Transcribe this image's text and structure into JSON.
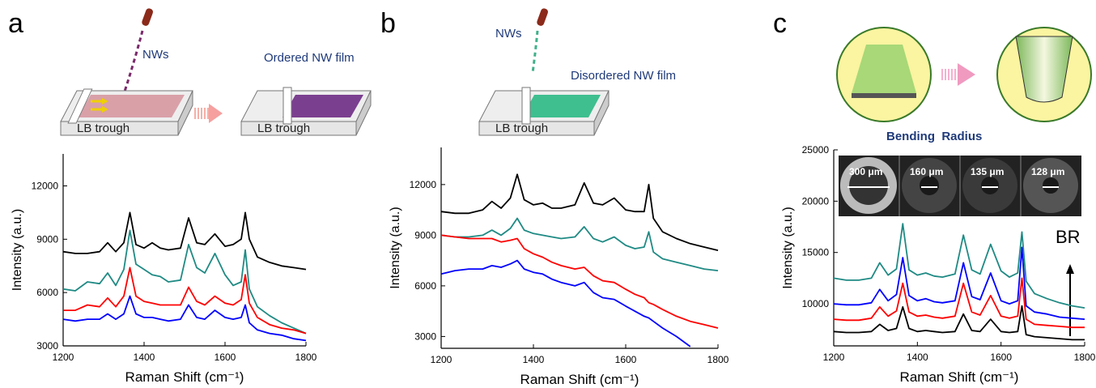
{
  "chart_data": [
    {
      "type": "line",
      "panel_label": "a",
      "xlabel": "Raman Shift (cm⁻¹)",
      "ylabel": "Intensity (a.u.)",
      "annotations": [
        "NWs",
        "Ordered NW film",
        "LB trough",
        "LB trough"
      ],
      "xlim": [
        1200,
        1800
      ],
      "xticks": [
        1200,
        1400,
        1600,
        1800
      ],
      "ylim": [
        3000,
        13800
      ],
      "yticks": [
        3000,
        6000,
        9000,
        12000
      ],
      "x": [
        1200,
        1230,
        1260,
        1290,
        1310,
        1330,
        1350,
        1365,
        1380,
        1400,
        1420,
        1440,
        1460,
        1490,
        1510,
        1530,
        1550,
        1575,
        1600,
        1620,
        1640,
        1650,
        1660,
        1680,
        1710,
        1740,
        1770,
        1800
      ],
      "series": [
        {
          "color": "#000000",
          "values": [
            8300,
            8200,
            8200,
            8300,
            8800,
            8300,
            8800,
            10500,
            8700,
            8500,
            8800,
            8500,
            8400,
            8500,
            10200,
            8800,
            8700,
            9300,
            8600,
            8700,
            9000,
            10500,
            9000,
            8000,
            7700,
            7500,
            7400,
            7300
          ]
        },
        {
          "color": "#1f8a84",
          "values": [
            6200,
            6100,
            6600,
            6500,
            7100,
            6400,
            7300,
            9500,
            7600,
            7300,
            7000,
            6900,
            6600,
            6700,
            8700,
            7400,
            7100,
            8200,
            7000,
            6400,
            6600,
            8400,
            6200,
            5200,
            4700,
            4300,
            4000,
            3700
          ]
        },
        {
          "color": "#ff0000",
          "values": [
            5000,
            5000,
            5300,
            5200,
            5700,
            5200,
            5800,
            7400,
            5800,
            5500,
            5400,
            5300,
            5300,
            5300,
            6300,
            5500,
            5300,
            5800,
            5400,
            5300,
            5600,
            7000,
            5400,
            4600,
            4200,
            4000,
            3900,
            3700
          ]
        },
        {
          "color": "#0000ff",
          "values": [
            4500,
            4400,
            4500,
            4500,
            4800,
            4500,
            4800,
            5800,
            4800,
            4600,
            4600,
            4500,
            4400,
            4500,
            5300,
            4600,
            4500,
            5000,
            4600,
            4500,
            4600,
            5300,
            4300,
            3900,
            3700,
            3600,
            3400,
            3300
          ]
        }
      ]
    },
    {
      "type": "line",
      "panel_label": "b",
      "xlabel": "Raman Shift (cm⁻¹)",
      "ylabel": "Intensity (a.u.)",
      "annotations": [
        "NWs",
        "Disordered NW film",
        "LB trough"
      ],
      "xlim": [
        1200,
        1800
      ],
      "xticks": [
        1200,
        1400,
        1600,
        1800
      ],
      "ylim": [
        2300,
        14200
      ],
      "yticks": [
        3000,
        6000,
        9000,
        12000
      ],
      "x": [
        1200,
        1230,
        1260,
        1290,
        1310,
        1330,
        1350,
        1365,
        1380,
        1400,
        1420,
        1440,
        1460,
        1490,
        1510,
        1530,
        1550,
        1575,
        1600,
        1620,
        1640,
        1650,
        1660,
        1680,
        1710,
        1740,
        1770,
        1800
      ],
      "series": [
        {
          "color": "#000000",
          "values": [
            10400,
            10300,
            10300,
            10500,
            11000,
            10600,
            11200,
            12600,
            11100,
            10800,
            10900,
            10600,
            10600,
            10800,
            12100,
            10900,
            10800,
            11200,
            10500,
            10400,
            10400,
            12000,
            10000,
            9200,
            8800,
            8500,
            8300,
            8100
          ]
        },
        {
          "color": "#1f8a84",
          "values": [
            9000,
            8900,
            8900,
            9000,
            9300,
            9000,
            9400,
            10000,
            9300,
            9100,
            9000,
            8900,
            8800,
            8900,
            9500,
            8800,
            8600,
            8900,
            8400,
            8200,
            8300,
            9200,
            8000,
            7600,
            7400,
            7200,
            7000,
            6900
          ]
        },
        {
          "color": "#ff0000",
          "values": [
            9000,
            8900,
            8800,
            8800,
            8800,
            8600,
            8700,
            8800,
            8200,
            7900,
            7700,
            7400,
            7200,
            7000,
            7100,
            6600,
            6300,
            6200,
            5800,
            5500,
            5300,
            5000,
            4900,
            4600,
            4200,
            3900,
            3700,
            3500
          ]
        },
        {
          "color": "#0000ff",
          "values": [
            6700,
            6900,
            7000,
            7000,
            7200,
            7100,
            7300,
            7500,
            7000,
            6800,
            6700,
            6400,
            6200,
            6000,
            6200,
            5600,
            5300,
            5200,
            4800,
            4500,
            4200,
            4100,
            3900,
            3500,
            3000,
            2400,
            null,
            null
          ]
        }
      ]
    },
    {
      "type": "line",
      "panel_label": "c",
      "xlabel": "Raman Shift (cm⁻¹)",
      "ylabel": "Intensity (a.u.)",
      "annotations": [
        "Bending  Radius",
        "300 μm",
        "160 μm",
        "135 μm",
        "128 μm",
        "BR"
      ],
      "xlim": [
        1200,
        1800
      ],
      "xticks": [
        1200,
        1400,
        1600,
        1800
      ],
      "ylim": [
        5900,
        25000
      ],
      "yticks": [
        10000,
        15000,
        20000,
        25000
      ],
      "x": [
        1200,
        1230,
        1260,
        1290,
        1310,
        1330,
        1350,
        1365,
        1380,
        1400,
        1420,
        1440,
        1460,
        1490,
        1510,
        1530,
        1550,
        1575,
        1600,
        1620,
        1640,
        1650,
        1660,
        1680,
        1710,
        1740,
        1770,
        1800
      ],
      "series": [
        {
          "color": "#000000",
          "values": [
            7300,
            7200,
            7200,
            7300,
            8000,
            7400,
            7600,
            9700,
            7600,
            7300,
            7400,
            7300,
            7200,
            7300,
            9000,
            7400,
            7300,
            8500,
            7300,
            7200,
            7300,
            9800,
            7000,
            6800,
            6700,
            6600,
            6500,
            6500
          ]
        },
        {
          "color": "#ff0000",
          "values": [
            8500,
            8400,
            8400,
            8600,
            9700,
            8800,
            9300,
            12000,
            9200,
            8800,
            8900,
            8700,
            8600,
            8800,
            12000,
            9200,
            8900,
            10800,
            8800,
            8600,
            8800,
            12500,
            8500,
            8000,
            7900,
            7800,
            7700,
            7700
          ]
        },
        {
          "color": "#0000ff",
          "values": [
            10000,
            9900,
            9900,
            10100,
            11400,
            10300,
            10900,
            14500,
            10800,
            10300,
            10500,
            10200,
            10100,
            10300,
            14000,
            10700,
            10400,
            13000,
            10300,
            10000,
            10300,
            15500,
            9800,
            9200,
            9000,
            8700,
            8600,
            8500
          ]
        },
        {
          "color": "#1f8a84",
          "values": [
            12500,
            12300,
            12300,
            12500,
            14000,
            12800,
            13400,
            17800,
            13300,
            12800,
            13000,
            12700,
            12600,
            12900,
            16700,
            13300,
            12900,
            15800,
            13200,
            12600,
            13000,
            17000,
            12200,
            11000,
            10500,
            10100,
            9800,
            9600
          ]
        }
      ]
    }
  ]
}
